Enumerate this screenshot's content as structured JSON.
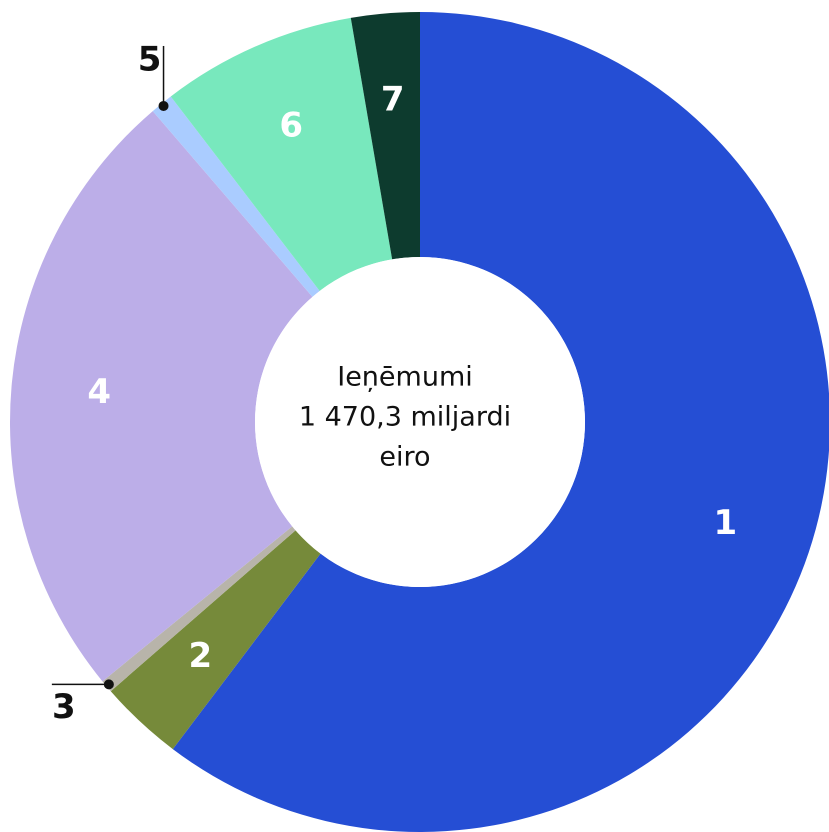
{
  "chart_data": {
    "type": "donut",
    "center_label": [
      "Ieņēmumi",
      "1 470,3 miljardi",
      "eiro"
    ],
    "categories": [
      "1",
      "2",
      "3",
      "4",
      "5",
      "6",
      "7"
    ],
    "values": [
      60.3,
      3.3,
      0.5,
      24.6,
      0.9,
      7.7,
      2.7
    ],
    "colors": [
      "#254ed4",
      "#768a3a",
      "#b8b4aa",
      "#bcaee8",
      "#aaccff",
      "#78e8bd",
      "#0d3b2e"
    ]
  }
}
